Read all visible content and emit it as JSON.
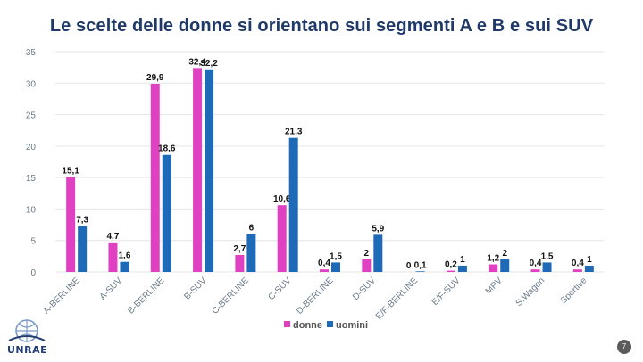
{
  "slide": {
    "title": "Le scelte delle donne si orientano sui segmenti A e B e sui SUV",
    "page_number": "7",
    "logo_text": "UNRAE"
  },
  "colors": {
    "title": "#1f3a68",
    "donne": "#e040c2",
    "uomini": "#1f6ab6",
    "grid": "#e6e6e6",
    "axis_text": "#6b7a89"
  },
  "chart_data": {
    "type": "bar",
    "categories": [
      "A-BERLINE",
      "A-SUV",
      "B-BERLINE",
      "B-SUV",
      "C-BERLINE",
      "C-SUV",
      "D-BERLINE",
      "D-SUV",
      "E/F-BERLINE",
      "E/F-SUV",
      "MPV",
      "S.Wagon",
      "Sportive"
    ],
    "series": [
      {
        "name": "donne",
        "values": [
          15.1,
          4.7,
          29.9,
          32.4,
          2.7,
          10.6,
          0.4,
          2,
          0,
          0.2,
          1.2,
          0.4,
          0.4
        ],
        "labels": [
          "15,1",
          "4,7",
          "29,9",
          "32,4",
          "2,7",
          "10,6",
          "0,4",
          "2",
          "0",
          "0,2",
          "1,2",
          "0,4",
          "0,4"
        ]
      },
      {
        "name": "uomini",
        "values": [
          7.3,
          1.6,
          18.6,
          32.2,
          6,
          21.3,
          1.5,
          5.9,
          0.1,
          1,
          2,
          1.5,
          1
        ],
        "labels": [
          "7,3",
          "1,6",
          "18,6",
          "32,2",
          "6",
          "21,3",
          "1,5",
          "5,9",
          "0,1",
          "1",
          "2",
          "1,5",
          "1"
        ]
      }
    ],
    "yticks": [
      "0",
      "5",
      "10",
      "15",
      "20",
      "25",
      "30",
      "35"
    ],
    "ylim": [
      0,
      35
    ],
    "grid": true,
    "legend": "bottom-center"
  }
}
